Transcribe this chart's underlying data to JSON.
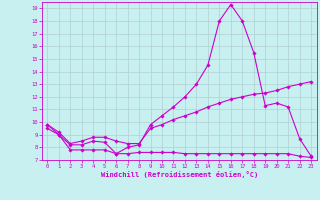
{
  "title": "",
  "xlabel": "Windchill (Refroidissement éolien,°C)",
  "ylabel": "",
  "x_values": [
    0,
    1,
    2,
    3,
    4,
    5,
    6,
    7,
    8,
    9,
    10,
    11,
    12,
    13,
    14,
    15,
    16,
    17,
    18,
    19,
    20,
    21,
    22,
    23
  ],
  "line1": [
    9.8,
    9.0,
    8.2,
    8.2,
    8.5,
    8.4,
    7.5,
    8.0,
    8.2,
    9.8,
    10.5,
    11.2,
    12.0,
    13.0,
    14.5,
    18.0,
    19.3,
    18.0,
    15.5,
    11.3,
    11.5,
    11.2,
    8.7,
    7.3
  ],
  "line2": [
    9.8,
    9.2,
    8.3,
    8.5,
    8.8,
    8.8,
    8.5,
    8.3,
    8.3,
    9.5,
    9.8,
    10.2,
    10.5,
    10.8,
    11.2,
    11.5,
    11.8,
    12.0,
    12.2,
    12.3,
    12.5,
    12.8,
    13.0,
    13.2
  ],
  "line3": [
    9.5,
    9.0,
    7.8,
    7.8,
    7.8,
    7.8,
    7.5,
    7.5,
    7.6,
    7.6,
    7.6,
    7.6,
    7.5,
    7.5,
    7.5,
    7.5,
    7.5,
    7.5,
    7.5,
    7.5,
    7.5,
    7.5,
    7.3,
    7.2
  ],
  "line_color": "#cc00cc",
  "bg_color": "#c8f0f0",
  "grid_color": "#b0d0d0",
  "ylim": [
    7,
    19.5
  ],
  "yticks": [
    7,
    8,
    9,
    10,
    11,
    12,
    13,
    14,
    15,
    16,
    17,
    18,
    19
  ],
  "xticks": [
    0,
    1,
    2,
    3,
    4,
    5,
    6,
    7,
    8,
    9,
    10,
    11,
    12,
    13,
    14,
    15,
    16,
    17,
    18,
    19,
    20,
    21,
    22,
    23
  ],
  "marker": "D",
  "markersize": 1.8,
  "linewidth": 0.8
}
